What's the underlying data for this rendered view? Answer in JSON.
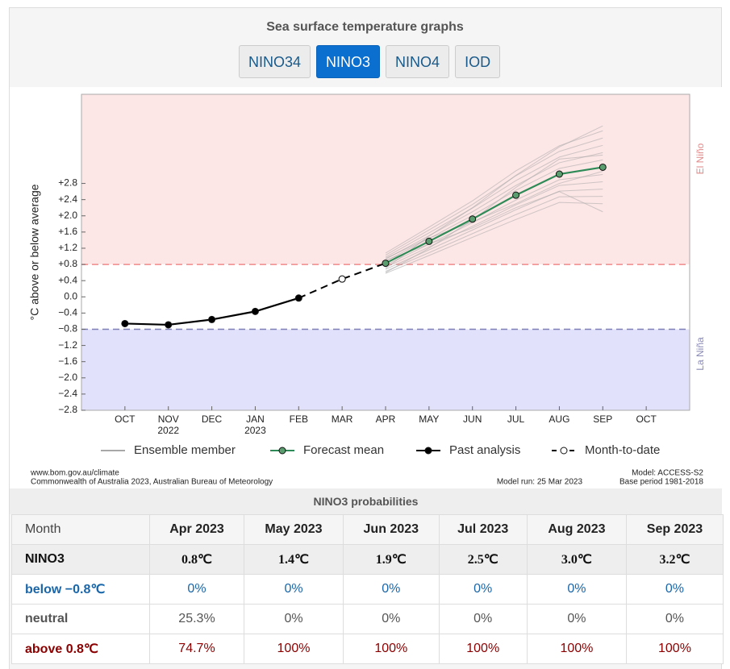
{
  "header": {
    "title": "Sea surface temperature graphs",
    "tabs": [
      {
        "label": "NINO34",
        "selected": false
      },
      {
        "label": "NINO3",
        "selected": true
      },
      {
        "label": "NINO4",
        "selected": false
      },
      {
        "label": "IOD",
        "selected": false
      }
    ]
  },
  "chart_data": {
    "type": "line",
    "y_label": "°C above or below average",
    "categories": [
      "OCT",
      "NOV",
      "DEC",
      "JAN",
      "FEB",
      "MAR",
      "APR",
      "MAY",
      "JUN",
      "JUL",
      "AUG",
      "SEP",
      "OCT"
    ],
    "years": [
      null,
      "2022",
      null,
      "2023",
      null,
      null,
      null,
      null,
      null,
      null,
      null,
      null,
      null
    ],
    "ylim": [
      -2.8,
      5.0
    ],
    "yticks": [
      {
        "value": -2.8,
        "label": "−2.8"
      },
      {
        "value": -2.4,
        "label": "−2.4"
      },
      {
        "value": -2.0,
        "label": "−2.0"
      },
      {
        "value": -1.6,
        "label": "−1.6"
      },
      {
        "value": -1.2,
        "label": "−1.2"
      },
      {
        "value": -0.8,
        "label": "−0.8"
      },
      {
        "value": -0.4,
        "label": "−0.4"
      },
      {
        "value": 0,
        "label": "0.0"
      },
      {
        "value": 0.4,
        "label": "+0.4"
      },
      {
        "value": 0.8,
        "label": "+0.8"
      },
      {
        "value": 1.2,
        "label": "+1.2"
      },
      {
        "value": 1.6,
        "label": "+1.6"
      },
      {
        "value": 2.0,
        "label": "+2.0"
      },
      {
        "value": 2.4,
        "label": "+2.4"
      },
      {
        "value": 2.8,
        "label": "+2.8"
      }
    ],
    "regions": [
      {
        "label": "El Niño",
        "threshold": 0.8,
        "side": "above",
        "color": "#fde6e6",
        "line_color": "#f08a8a",
        "label_color": "#e08a8a"
      },
      {
        "label": "La Niña",
        "threshold": -0.8,
        "side": "below",
        "color": "#e1e1fb",
        "line_color": "#7f7fb8",
        "label_color": "#8a8ab5"
      }
    ],
    "ensemble": {
      "name": "Ensemble member",
      "color": "#a8a8a8",
      "members": [
        [
          null,
          null,
          null,
          null,
          null,
          null,
          0.58,
          1.02,
          1.47,
          1.91,
          2.33,
          2.3,
          null
        ],
        [
          null,
          null,
          null,
          null,
          null,
          null,
          0.63,
          1.09,
          1.56,
          2.03,
          2.47,
          2.48,
          null
        ],
        [
          null,
          null,
          null,
          null,
          null,
          null,
          0.68,
          1.16,
          1.65,
          2.15,
          2.61,
          2.66,
          null
        ],
        [
          null,
          null,
          null,
          null,
          null,
          null,
          0.73,
          1.23,
          1.74,
          2.27,
          2.75,
          2.84,
          null
        ],
        [
          null,
          null,
          null,
          null,
          null,
          null,
          0.78,
          1.3,
          1.83,
          2.39,
          2.89,
          3.02,
          null
        ],
        [
          null,
          null,
          null,
          null,
          null,
          null,
          0.83,
          1.37,
          1.92,
          2.51,
          3.03,
          3.2,
          null
        ],
        [
          null,
          null,
          null,
          null,
          null,
          null,
          0.88,
          1.44,
          2.01,
          2.63,
          3.17,
          3.38,
          null
        ],
        [
          null,
          null,
          null,
          null,
          null,
          null,
          0.93,
          1.51,
          2.1,
          2.75,
          3.31,
          3.56,
          null
        ],
        [
          null,
          null,
          null,
          null,
          null,
          null,
          0.98,
          1.58,
          2.19,
          2.87,
          3.45,
          3.74,
          null
        ],
        [
          null,
          null,
          null,
          null,
          null,
          null,
          1.03,
          1.65,
          2.28,
          2.99,
          3.59,
          3.92,
          null
        ],
        [
          null,
          null,
          null,
          null,
          null,
          null,
          1.08,
          1.72,
          2.37,
          3.11,
          3.73,
          4.1,
          null
        ],
        [
          null,
          null,
          null,
          null,
          null,
          null,
          0.6,
          1.2,
          1.9,
          2.7,
          3.4,
          3.5,
          null
        ],
        [
          null,
          null,
          null,
          null,
          null,
          null,
          0.9,
          1.3,
          1.7,
          2.2,
          2.6,
          2.1,
          null
        ],
        [
          null,
          null,
          null,
          null,
          null,
          null,
          0.7,
          1.5,
          2.2,
          3.0,
          3.7,
          4.22,
          null
        ],
        [
          null,
          null,
          null,
          null,
          null,
          null,
          0.95,
          1.45,
          1.85,
          2.3,
          2.8,
          3.1,
          null
        ]
      ]
    },
    "series": [
      {
        "name": "Forecast mean",
        "color": "#2e8b57",
        "marker_fill": "#5a9e6f",
        "dashed": false,
        "values": [
          null,
          null,
          null,
          null,
          null,
          null,
          0.83,
          1.37,
          1.92,
          2.51,
          3.03,
          3.2,
          null
        ]
      },
      {
        "name": "Past analysis",
        "color": "#000000",
        "marker_fill": "#000000",
        "dashed": false,
        "values": [
          -0.66,
          -0.69,
          -0.56,
          -0.36,
          -0.03,
          null,
          null,
          null,
          null,
          null,
          null,
          null,
          null
        ]
      },
      {
        "name": "Month-to-date",
        "color": "#000000",
        "marker_fill": "#ffffff",
        "dashed": true,
        "values": [
          null,
          null,
          null,
          null,
          null,
          0.44,
          null,
          null,
          null,
          null,
          null,
          null,
          null
        ]
      }
    ],
    "footer": {
      "source": "www.bom.gov.au/climate",
      "copyright": "Commonwealth of Australia 2023, Australian Bureau of Meteorology",
      "model_run": "Model run: 25 Mar 2023",
      "model": "Model: ACCESS-S2",
      "base_period": "Base period 1981-2018"
    }
  },
  "table": {
    "title": "NINO3 probabilities",
    "columns": [
      "Month",
      "Apr 2023",
      "May 2023",
      "Jun 2023",
      "Jul 2023",
      "Aug 2023",
      "Sep 2023"
    ],
    "rows": [
      [
        "NINO3",
        "0.8℃",
        "1.4℃",
        "1.9℃",
        "2.5℃",
        "3.0℃",
        "3.2℃"
      ],
      [
        "below −0.8℃",
        "0%",
        "0%",
        "0%",
        "0%",
        "0%",
        "0%"
      ],
      [
        "neutral",
        "25.3%",
        "0%",
        "0%",
        "0%",
        "0%",
        "0%"
      ],
      [
        "above 0.8℃",
        "74.7%",
        "100%",
        "100%",
        "100%",
        "100%",
        "100%"
      ]
    ]
  }
}
